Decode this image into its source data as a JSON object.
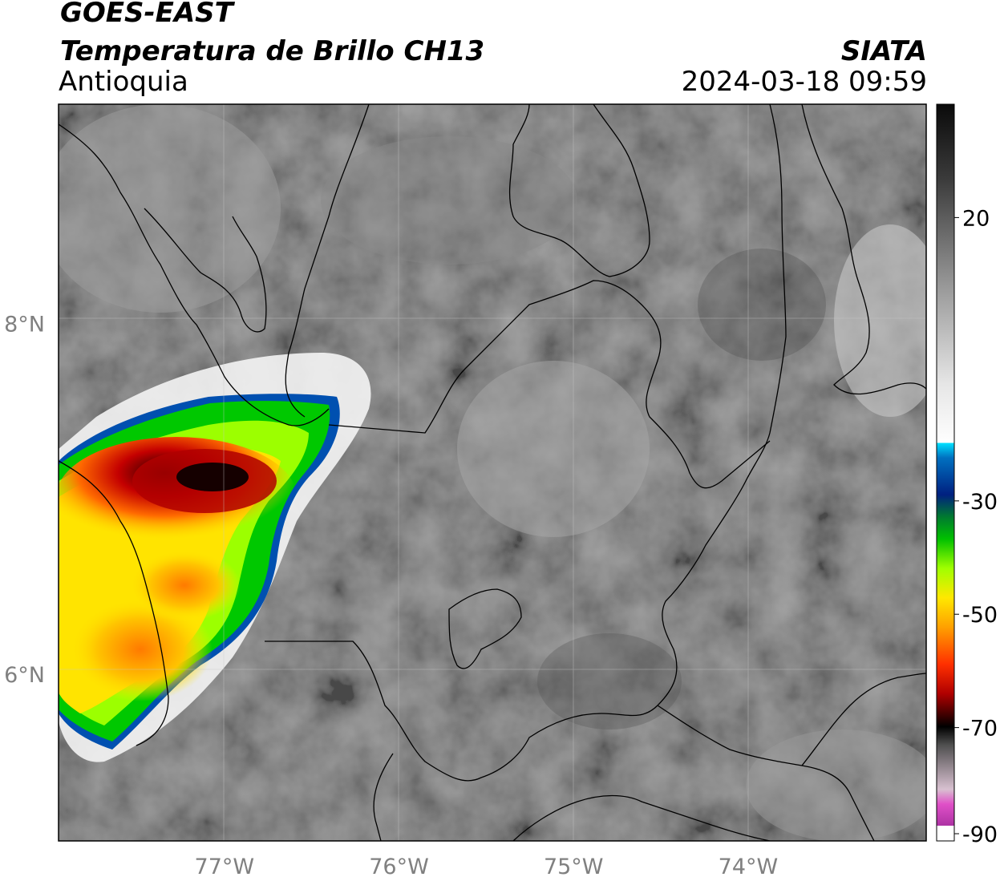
{
  "header": {
    "satellite": "GOES-EAST",
    "product": "Temperatura de Brillo CH13",
    "region": "Antioquia",
    "agency": "SIATA",
    "datetime": "2024-03-18 09:59"
  },
  "map": {
    "lon_range": [
      -77.95,
      -72.98
    ],
    "lat_range": [
      5.05,
      9.25
    ],
    "lon_ticks": [
      {
        "value": -77,
        "label": "77°W"
      },
      {
        "value": -76,
        "label": "76°W"
      },
      {
        "value": -75,
        "label": "75°W"
      },
      {
        "value": -74,
        "label": "74°W"
      }
    ],
    "lat_ticks": [
      {
        "value": 8,
        "label": "8°N"
      },
      {
        "value": 6,
        "label": "6°N"
      }
    ],
    "grid": true
  },
  "colorbar": {
    "range": [
      -90,
      40
    ],
    "ticks": [
      {
        "value": 20,
        "label": "20"
      },
      {
        "value": -30,
        "label": "-30"
      },
      {
        "value": -50,
        "label": "-50"
      },
      {
        "value": -70,
        "label": "-70"
      },
      {
        "value": -90,
        "label": "-90"
      }
    ]
  }
}
